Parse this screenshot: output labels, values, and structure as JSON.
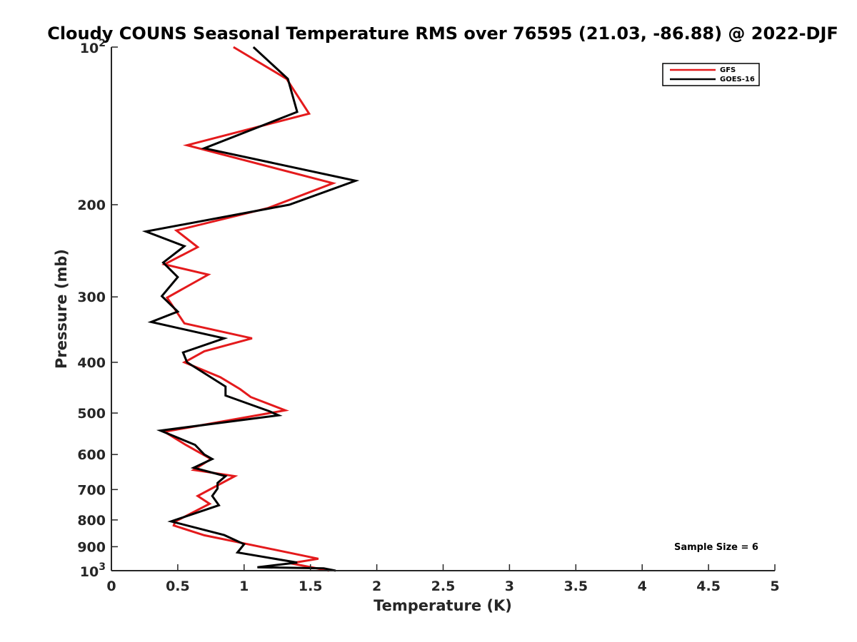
{
  "chart_data": {
    "type": "line",
    "title": "Cloudy COUNS Seasonal Temperature RMS over 76595 (21.03, -86.88) @ 2022-DJF",
    "xlabel": "Temperature (K)",
    "ylabel": "Pressure (mb)",
    "xlim": [
      0,
      5
    ],
    "ylim": [
      100,
      1000
    ],
    "y_scale": "log",
    "y_reversed": true,
    "grid": false,
    "legend_position": "top-right",
    "x_ticks": [
      "0",
      "0.5",
      "1",
      "1.5",
      "2",
      "2.5",
      "3",
      "3.5",
      "4",
      "4.5",
      "5"
    ],
    "y_ticks": [
      {
        "value": 100,
        "base": "10",
        "exp": "2"
      },
      {
        "value": 200,
        "label": "200"
      },
      {
        "value": 300,
        "label": "300"
      },
      {
        "value": 400,
        "label": "400"
      },
      {
        "value": 500,
        "label": "500"
      },
      {
        "value": 600,
        "label": "600"
      },
      {
        "value": 700,
        "label": "700"
      },
      {
        "value": 800,
        "label": "800"
      },
      {
        "value": 900,
        "label": "900"
      },
      {
        "value": 1000,
        "base": "10",
        "exp": "3"
      }
    ],
    "annotation": "Sample Size = 6",
    "series": [
      {
        "name": "GFS",
        "color": "#e41a1c",
        "points": [
          [
            0.92,
            100
          ],
          [
            1.32,
            115
          ],
          [
            1.49,
            134
          ],
          [
            0.57,
            154
          ],
          [
            1.67,
            182
          ],
          [
            1.18,
            203
          ],
          [
            0.49,
            224
          ],
          [
            0.65,
            241
          ],
          [
            0.4,
            260
          ],
          [
            0.73,
            272
          ],
          [
            0.42,
            301
          ],
          [
            0.55,
            337
          ],
          [
            1.06,
            360
          ],
          [
            0.7,
            381
          ],
          [
            0.55,
            400
          ],
          [
            0.82,
            427
          ],
          [
            0.97,
            450
          ],
          [
            1.05,
            466
          ],
          [
            1.31,
            494
          ],
          [
            0.4,
            543
          ],
          [
            0.56,
            575
          ],
          [
            0.75,
            612
          ],
          [
            0.62,
            642
          ],
          [
            0.93,
            660
          ],
          [
            0.65,
            720
          ],
          [
            0.74,
            745
          ],
          [
            0.48,
            806
          ],
          [
            0.47,
            820
          ],
          [
            0.7,
            856
          ],
          [
            1.0,
            887
          ],
          [
            1.56,
            949
          ],
          [
            1.35,
            968
          ],
          [
            1.64,
            1000
          ]
        ]
      },
      {
        "name": "GOES-16",
        "color": "#000000",
        "points": [
          [
            1.07,
            100
          ],
          [
            1.33,
            115
          ],
          [
            1.4,
            133
          ],
          [
            0.7,
            156
          ],
          [
            1.84,
            180
          ],
          [
            1.34,
            200
          ],
          [
            0.26,
            225
          ],
          [
            0.55,
            240
          ],
          [
            0.39,
            258
          ],
          [
            0.5,
            275
          ],
          [
            0.38,
            299
          ],
          [
            0.5,
            320
          ],
          [
            0.3,
            335
          ],
          [
            0.85,
            360
          ],
          [
            0.54,
            383
          ],
          [
            0.57,
            400
          ],
          [
            0.86,
            445
          ],
          [
            0.86,
            463
          ],
          [
            1.19,
            496
          ],
          [
            1.26,
            505
          ],
          [
            0.37,
            540
          ],
          [
            0.63,
            575
          ],
          [
            0.7,
            600
          ],
          [
            0.76,
            612
          ],
          [
            0.62,
            636
          ],
          [
            0.86,
            660
          ],
          [
            0.8,
            680
          ],
          [
            0.8,
            697
          ],
          [
            0.76,
            720
          ],
          [
            0.81,
            750
          ],
          [
            0.45,
            805
          ],
          [
            0.85,
            855
          ],
          [
            1.0,
            890
          ],
          [
            0.95,
            923
          ],
          [
            1.4,
            965
          ],
          [
            1.1,
            985
          ],
          [
            1.6,
            990
          ],
          [
            1.69,
            1000
          ]
        ]
      }
    ]
  }
}
